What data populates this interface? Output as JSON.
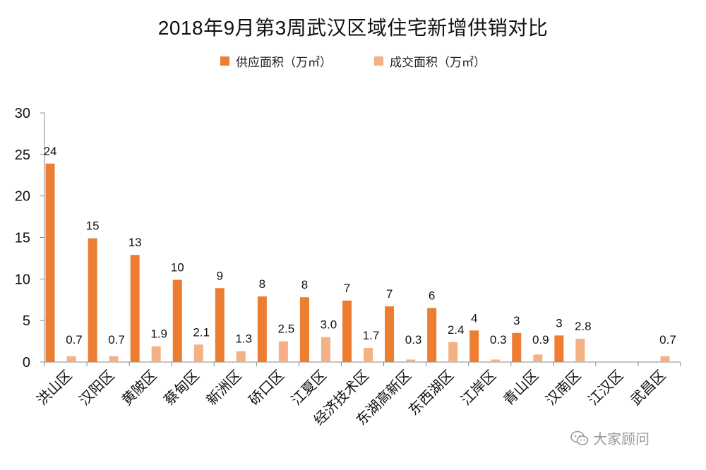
{
  "colors": {
    "supply": "#ED7D31",
    "deal": "#F4B183",
    "axis": "#888888"
  },
  "watermark": {
    "text": "大家顾问",
    "icon": "wechat-icon"
  },
  "chart_data": {
    "type": "bar",
    "title": "2018年9月第3周武汉区域住宅新增供销对比",
    "xlabel": "",
    "ylabel": "",
    "ylim": [
      0,
      30
    ],
    "yticks": [
      0,
      5,
      10,
      15,
      20,
      25,
      30
    ],
    "legend_position": "top-center",
    "grid": false,
    "categories": [
      "洪山区",
      "汉阳区",
      "黄陂区",
      "蔡甸区",
      "新洲区",
      "硚口区",
      "江夏区",
      "经济技术区",
      "东湖高新区",
      "东西湖区",
      "江岸区",
      "青山区",
      "汉南区",
      "江汉区",
      "武昌区"
    ],
    "series": [
      {
        "name": "供应面积（万㎡）",
        "values": [
          23.9,
          14.9,
          12.9,
          9.9,
          8.9,
          7.9,
          7.8,
          7.4,
          6.7,
          6.5,
          3.8,
          3.5,
          3.2,
          null,
          null
        ],
        "labels": [
          "24",
          "15",
          "13",
          "10",
          "9",
          "8",
          "8",
          "7",
          "7",
          "6",
          "4",
          "3",
          "3",
          "",
          ""
        ]
      },
      {
        "name": "成交面积（万㎡）",
        "values": [
          0.7,
          0.7,
          1.9,
          2.1,
          1.3,
          2.5,
          3.0,
          1.7,
          0.3,
          2.4,
          0.3,
          0.9,
          2.8,
          null,
          0.7
        ],
        "labels": [
          "0.7",
          "0.7",
          "1.9",
          "2.1",
          "1.3",
          "2.5",
          "3.0",
          "1.7",
          "0.3",
          "2.4",
          "0.3",
          "0.9",
          "2.8",
          "",
          "0.7"
        ]
      }
    ]
  }
}
